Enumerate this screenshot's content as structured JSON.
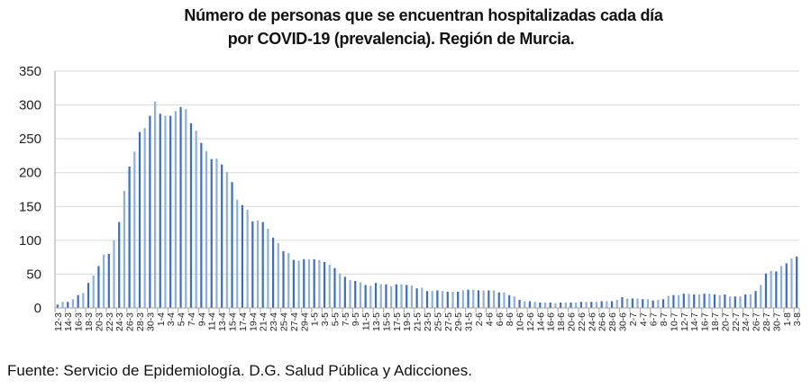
{
  "chart_data": {
    "type": "bar",
    "title_lines": [
      "Número de personas que se encuentran hospitalizadas cada día",
      "por COVID-19 (prevalencia). Región de Murcia."
    ],
    "xlabel": "",
    "ylabel": "",
    "ylim": [
      0,
      350
    ],
    "yticks": [
      0,
      50,
      100,
      150,
      200,
      250,
      300,
      350
    ],
    "grid": true,
    "legend": "none",
    "bar_colors": [
      "#3a6fbf",
      "#8fb0dc"
    ],
    "categories": [
      "12-3",
      "13-3",
      "14-3",
      "15-3",
      "16-3",
      "17-3",
      "18-3",
      "19-3",
      "20-3",
      "21-3",
      "22-3",
      "23-3",
      "24-3",
      "25-3",
      "26-3",
      "27-3",
      "28-3",
      "29-3",
      "30-3",
      "31-3",
      "1-4",
      "2-4",
      "3-4",
      "4-4",
      "5-4",
      "6-4",
      "7-4",
      "8-4",
      "9-4",
      "10-4",
      "11-4",
      "12-4",
      "13-4",
      "14-4",
      "15-4",
      "16-4",
      "17-4",
      "18-4",
      "19-4",
      "20-4",
      "21-4",
      "22-4",
      "23-4",
      "24-4",
      "25-4",
      "26-4",
      "27-4",
      "28-4",
      "29-4",
      "30-4",
      "1-5",
      "2-5",
      "3-5",
      "4-5",
      "5-5",
      "6-5",
      "7-5",
      "8-5",
      "9-5",
      "10-5",
      "11-5",
      "12-5",
      "13-5",
      "14-5",
      "15-5",
      "16-5",
      "17-5",
      "18-5",
      "19-5",
      "20-5",
      "21-5",
      "22-5",
      "23-5",
      "24-5",
      "25-5",
      "26-5",
      "27-5",
      "28-5",
      "29-5",
      "30-5",
      "31-5",
      "1-6",
      "2-6",
      "3-6",
      "4-6",
      "5-6",
      "6-6",
      "7-6",
      "8-6",
      "9-6",
      "10-6",
      "11-6",
      "12-6",
      "13-6",
      "14-6",
      "15-6",
      "16-6",
      "17-6",
      "18-6",
      "19-6",
      "20-6",
      "21-6",
      "22-6",
      "23-6",
      "24-6",
      "25-6",
      "26-6",
      "27-6",
      "28-6",
      "29-6",
      "30-6",
      "1-7",
      "2-7",
      "3-7",
      "4-7",
      "5-7",
      "6-7",
      "7-7",
      "8-7",
      "9-7",
      "10-7",
      "11-7",
      "12-7",
      "13-7",
      "14-7",
      "15-7",
      "16-7",
      "17-7",
      "18-7",
      "19-7",
      "20-7",
      "21-7",
      "22-7",
      "23-7",
      "24-7",
      "25-7",
      "26-7",
      "27-7",
      "28-7",
      "29-7",
      "30-7",
      "31-7",
      "1-8",
      "2-8",
      "3-8"
    ],
    "values": [
      5,
      9,
      9,
      13,
      19,
      22,
      37,
      48,
      62,
      79,
      80,
      100,
      127,
      173,
      209,
      231,
      260,
      266,
      284,
      305,
      287,
      284,
      284,
      291,
      297,
      294,
      273,
      262,
      244,
      232,
      220,
      221,
      212,
      201,
      186,
      160,
      152,
      145,
      128,
      129,
      127,
      117,
      104,
      96,
      84,
      81,
      71,
      70,
      72,
      72,
      72,
      71,
      68,
      64,
      59,
      51,
      46,
      41,
      40,
      38,
      34,
      33,
      37,
      35,
      35,
      32,
      35,
      35,
      34,
      33,
      29,
      30,
      25,
      25,
      26,
      25,
      24,
      24,
      24,
      26,
      27,
      27,
      26,
      26,
      26,
      26,
      23,
      23,
      19,
      17,
      12,
      10,
      10,
      9,
      8,
      8,
      8,
      7,
      8,
      8,
      8,
      8,
      9,
      9,
      9,
      9,
      10,
      10,
      10,
      12,
      16,
      14,
      14,
      14,
      13,
      13,
      11,
      12,
      13,
      18,
      19,
      19,
      21,
      21,
      20,
      20,
      21,
      21,
      20,
      19,
      20,
      17,
      17,
      17,
      20,
      20,
      25,
      34,
      51,
      55,
      54,
      62,
      66,
      73,
      76
    ],
    "tick_labels": [
      "12-3",
      "14-3",
      "16-3",
      "18-3",
      "20-3",
      "22-3",
      "24-3",
      "26-3",
      "28-3",
      "30-3",
      "1-4",
      "3-4",
      "5-4",
      "7-4",
      "9-4",
      "11-4",
      "13-4",
      "15-4",
      "17-4",
      "19-4",
      "21-4",
      "23-4",
      "25-4",
      "27-4",
      "29-4",
      "1-5",
      "3-5",
      "5-5",
      "7-5",
      "9-5",
      "11-5",
      "13-5",
      "15-5",
      "17-5",
      "19-5",
      "21-5",
      "23-5",
      "25-5",
      "27-5",
      "29-5",
      "31-5",
      "2-6",
      "4-6",
      "6-6",
      "8-6",
      "10-6",
      "12-6",
      "14-6",
      "16-6",
      "18-6",
      "20-6",
      "22-6",
      "24-6",
      "26-6",
      "28-6",
      "30-6",
      "2-7",
      "4-7",
      "6-7",
      "8-7",
      "10-7",
      "12-7",
      "14-7",
      "16-7",
      "18-7",
      "20-7",
      "22-7",
      "24-7",
      "26-7",
      "28-7",
      "30-7",
      "1-8",
      "3-8"
    ],
    "source": "Fuente: Servicio de Epidemiología. D.G. Salud Pública y Adicciones."
  }
}
